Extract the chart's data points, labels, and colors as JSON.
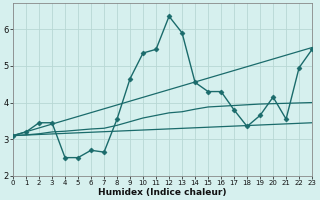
{
  "xlabel": "Humidex (Indice chaleur)",
  "background_color": "#d6f0ee",
  "grid_color": "#b8d8d4",
  "line_color": "#1a6b6b",
  "xlim": [
    0,
    23
  ],
  "ylim": [
    2.0,
    6.7
  ],
  "yticks": [
    2,
    3,
    4,
    5,
    6
  ],
  "xticks": [
    0,
    1,
    2,
    3,
    4,
    5,
    6,
    7,
    8,
    9,
    10,
    11,
    12,
    13,
    14,
    15,
    16,
    17,
    18,
    19,
    20,
    21,
    22,
    23
  ],
  "lines": [
    {
      "x": [
        0,
        1,
        2,
        3,
        4,
        5,
        6,
        7,
        8,
        9,
        10,
        11,
        12,
        13,
        14,
        15,
        16,
        17,
        18,
        19,
        20,
        21,
        22,
        23
      ],
      "y": [
        3.1,
        3.2,
        3.45,
        3.45,
        2.5,
        2.5,
        2.7,
        2.65,
        3.55,
        4.65,
        5.35,
        5.45,
        6.35,
        5.9,
        4.55,
        4.3,
        4.3,
        3.8,
        3.35,
        3.65,
        4.15,
        3.55,
        4.95,
        5.45
      ],
      "marker": "D",
      "markersize": 2.5,
      "linewidth": 1.0,
      "zorder": 4
    },
    {
      "x": [
        0,
        23
      ],
      "y": [
        3.1,
        5.5
      ],
      "marker": null,
      "linewidth": 0.9,
      "zorder": 2
    },
    {
      "x": [
        0,
        23
      ],
      "y": [
        3.1,
        3.45
      ],
      "marker": null,
      "linewidth": 0.9,
      "zorder": 2
    },
    {
      "x": [
        0,
        1,
        2,
        3,
        4,
        5,
        6,
        7,
        8,
        9,
        10,
        11,
        12,
        13,
        14,
        15,
        16,
        17,
        18,
        19,
        20,
        21,
        22,
        23
      ],
      "y": [
        3.1,
        3.12,
        3.15,
        3.2,
        3.22,
        3.25,
        3.28,
        3.3,
        3.38,
        3.48,
        3.58,
        3.65,
        3.72,
        3.75,
        3.82,
        3.88,
        3.9,
        3.92,
        3.94,
        3.96,
        3.97,
        3.98,
        3.99,
        4.0
      ],
      "marker": null,
      "linewidth": 0.9,
      "zorder": 2
    }
  ]
}
